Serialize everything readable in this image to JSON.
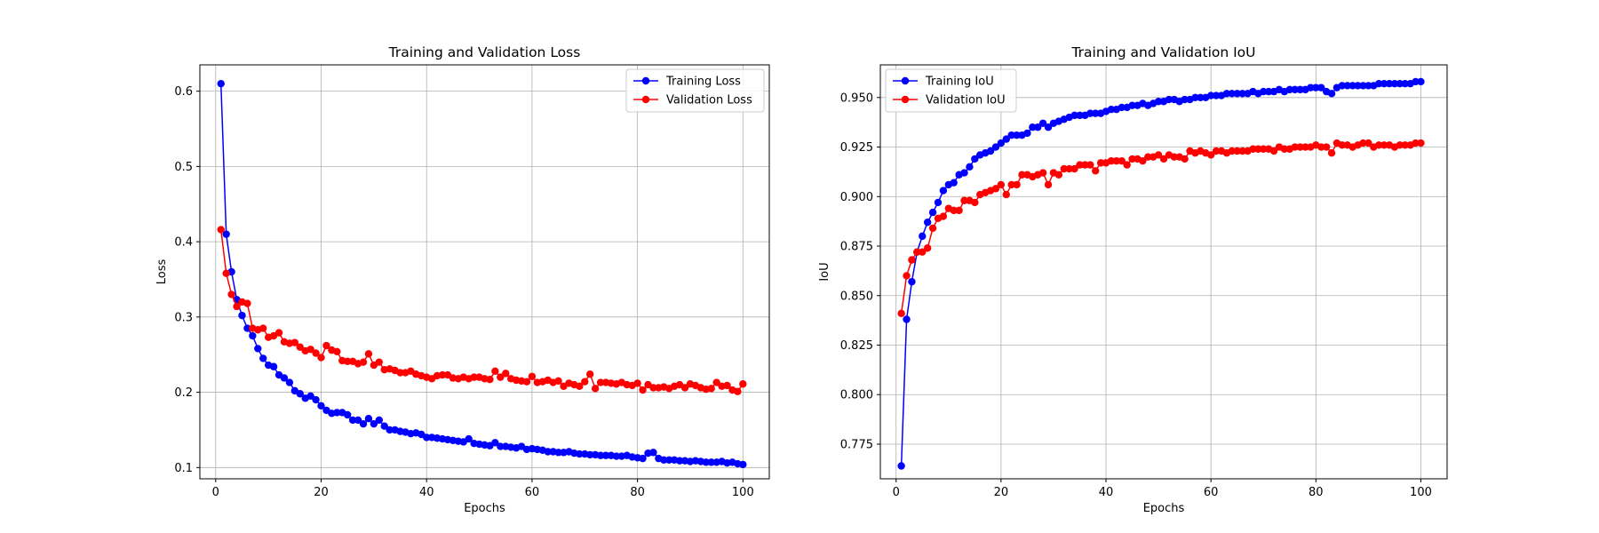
{
  "chart_data": [
    {
      "type": "line",
      "title": "Training and Validation Loss",
      "xlabel": "Epochs",
      "ylabel": "Loss",
      "xlim": [
        -3,
        105
      ],
      "ylim": [
        0.085,
        0.635
      ],
      "xticks": [
        0,
        20,
        40,
        60,
        80,
        100
      ],
      "xtick_labels": [
        "0",
        "20",
        "40",
        "60",
        "80",
        "100"
      ],
      "yticks": [
        0.1,
        0.2,
        0.3,
        0.4,
        0.5,
        0.6
      ],
      "ytick_labels": [
        "0.1",
        "0.2",
        "0.3",
        "0.4",
        "0.5",
        "0.6"
      ],
      "grid": true,
      "legend_position": "top-right",
      "x_start": 1,
      "series": [
        {
          "name": "Training Loss",
          "color": "#0000ff",
          "values": [
            0.61,
            0.41,
            0.36,
            0.323,
            0.302,
            0.285,
            0.275,
            0.258,
            0.245,
            0.236,
            0.234,
            0.223,
            0.219,
            0.213,
            0.202,
            0.198,
            0.192,
            0.195,
            0.19,
            0.182,
            0.176,
            0.172,
            0.173,
            0.173,
            0.17,
            0.163,
            0.163,
            0.158,
            0.165,
            0.158,
            0.163,
            0.155,
            0.15,
            0.15,
            0.148,
            0.147,
            0.145,
            0.146,
            0.144,
            0.14,
            0.14,
            0.139,
            0.138,
            0.137,
            0.136,
            0.135,
            0.134,
            0.138,
            0.132,
            0.131,
            0.13,
            0.129,
            0.133,
            0.128,
            0.128,
            0.127,
            0.126,
            0.128,
            0.124,
            0.125,
            0.124,
            0.123,
            0.121,
            0.121,
            0.12,
            0.12,
            0.121,
            0.119,
            0.118,
            0.118,
            0.117,
            0.117,
            0.116,
            0.116,
            0.116,
            0.115,
            0.115,
            0.116,
            0.114,
            0.113,
            0.112,
            0.119,
            0.12,
            0.112,
            0.11,
            0.11,
            0.11,
            0.109,
            0.109,
            0.108,
            0.109,
            0.108,
            0.107,
            0.107,
            0.107,
            0.108,
            0.106,
            0.107,
            0.105,
            0.104
          ]
        },
        {
          "name": "Validation Loss",
          "color": "#ff0000",
          "values": [
            0.416,
            0.358,
            0.33,
            0.314,
            0.32,
            0.318,
            0.285,
            0.283,
            0.285,
            0.273,
            0.275,
            0.279,
            0.267,
            0.265,
            0.266,
            0.26,
            0.255,
            0.257,
            0.252,
            0.246,
            0.262,
            0.256,
            0.254,
            0.242,
            0.241,
            0.241,
            0.238,
            0.24,
            0.251,
            0.236,
            0.24,
            0.23,
            0.231,
            0.229,
            0.226,
            0.226,
            0.228,
            0.224,
            0.222,
            0.22,
            0.218,
            0.222,
            0.223,
            0.223,
            0.219,
            0.218,
            0.22,
            0.218,
            0.22,
            0.22,
            0.218,
            0.217,
            0.228,
            0.22,
            0.225,
            0.218,
            0.216,
            0.215,
            0.214,
            0.221,
            0.213,
            0.214,
            0.216,
            0.213,
            0.215,
            0.208,
            0.212,
            0.21,
            0.208,
            0.214,
            0.224,
            0.205,
            0.213,
            0.213,
            0.212,
            0.211,
            0.213,
            0.21,
            0.209,
            0.212,
            0.203,
            0.21,
            0.206,
            0.206,
            0.207,
            0.205,
            0.208,
            0.21,
            0.206,
            0.211,
            0.209,
            0.206,
            0.204,
            0.205,
            0.213,
            0.208,
            0.209,
            0.203,
            0.201,
            0.211
          ]
        }
      ]
    },
    {
      "type": "line",
      "title": "Training and Validation IoU",
      "xlabel": "Epochs",
      "ylabel": "IoU",
      "xlim": [
        -3,
        105
      ],
      "ylim": [
        0.7575,
        0.9665
      ],
      "xticks": [
        0,
        20,
        40,
        60,
        80,
        100
      ],
      "xtick_labels": [
        "0",
        "20",
        "40",
        "60",
        "80",
        "100"
      ],
      "yticks": [
        0.775,
        0.8,
        0.825,
        0.85,
        0.875,
        0.9,
        0.925,
        0.95
      ],
      "ytick_labels": [
        "0.775",
        "0.800",
        "0.825",
        "0.850",
        "0.875",
        "0.900",
        "0.925",
        "0.950"
      ],
      "grid": true,
      "legend_position": "top-left",
      "x_start": 1,
      "series": [
        {
          "name": "Training IoU",
          "color": "#0000ff",
          "values": [
            0.764,
            0.838,
            0.857,
            0.872,
            0.88,
            0.887,
            0.892,
            0.897,
            0.903,
            0.906,
            0.907,
            0.911,
            0.912,
            0.915,
            0.919,
            0.921,
            0.922,
            0.923,
            0.925,
            0.927,
            0.929,
            0.931,
            0.931,
            0.931,
            0.932,
            0.935,
            0.935,
            0.937,
            0.935,
            0.937,
            0.938,
            0.939,
            0.94,
            0.941,
            0.941,
            0.941,
            0.942,
            0.942,
            0.942,
            0.943,
            0.944,
            0.944,
            0.945,
            0.945,
            0.946,
            0.946,
            0.947,
            0.946,
            0.947,
            0.948,
            0.948,
            0.949,
            0.949,
            0.948,
            0.949,
            0.949,
            0.95,
            0.95,
            0.95,
            0.951,
            0.951,
            0.951,
            0.952,
            0.952,
            0.952,
            0.952,
            0.952,
            0.953,
            0.952,
            0.953,
            0.953,
            0.953,
            0.954,
            0.953,
            0.954,
            0.954,
            0.954,
            0.954,
            0.955,
            0.955,
            0.955,
            0.953,
            0.952,
            0.955,
            0.956,
            0.956,
            0.956,
            0.956,
            0.956,
            0.956,
            0.956,
            0.957,
            0.957,
            0.957,
            0.957,
            0.957,
            0.957,
            0.957,
            0.958,
            0.958
          ]
        },
        {
          "name": "Validation IoU",
          "color": "#ff0000",
          "values": [
            0.841,
            0.86,
            0.868,
            0.872,
            0.872,
            0.874,
            0.884,
            0.889,
            0.89,
            0.894,
            0.893,
            0.893,
            0.898,
            0.898,
            0.897,
            0.901,
            0.902,
            0.903,
            0.904,
            0.906,
            0.901,
            0.906,
            0.906,
            0.911,
            0.911,
            0.91,
            0.911,
            0.912,
            0.906,
            0.912,
            0.911,
            0.914,
            0.914,
            0.914,
            0.916,
            0.916,
            0.916,
            0.913,
            0.917,
            0.917,
            0.918,
            0.918,
            0.918,
            0.916,
            0.919,
            0.919,
            0.918,
            0.92,
            0.92,
            0.921,
            0.919,
            0.921,
            0.92,
            0.92,
            0.919,
            0.923,
            0.922,
            0.923,
            0.922,
            0.921,
            0.923,
            0.923,
            0.922,
            0.923,
            0.923,
            0.923,
            0.923,
            0.924,
            0.924,
            0.924,
            0.924,
            0.923,
            0.925,
            0.924,
            0.924,
            0.925,
            0.925,
            0.925,
            0.925,
            0.926,
            0.925,
            0.925,
            0.922,
            0.927,
            0.926,
            0.926,
            0.925,
            0.926,
            0.927,
            0.927,
            0.925,
            0.926,
            0.926,
            0.926,
            0.925,
            0.926,
            0.926,
            0.926,
            0.927,
            0.927
          ]
        }
      ]
    }
  ]
}
